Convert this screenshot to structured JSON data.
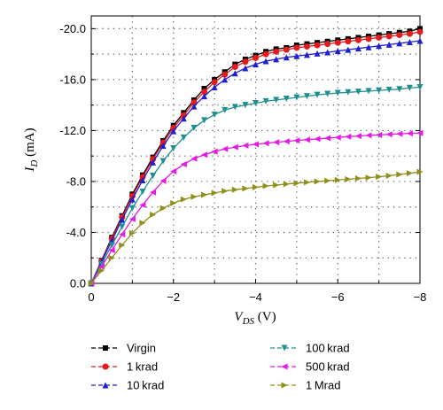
{
  "chart_data": {
    "type": "line",
    "xlabel": {
      "main": "V",
      "sub": "DS",
      "unit": " (V)"
    },
    "ylabel": {
      "main": "I",
      "sub": "D",
      "unit": " (mA)"
    },
    "xlim": [
      0,
      -8
    ],
    "ylim": [
      0,
      -21.0
    ],
    "x_ticks": [
      0,
      -2,
      -4,
      -6,
      -8
    ],
    "x_tick_labels": [
      "0",
      "−2",
      "−4",
      "−6",
      "−8"
    ],
    "y_ticks": [
      0,
      -4,
      -8,
      -12,
      -16,
      -20
    ],
    "y_tick_labels": [
      "0.0",
      "-4.0",
      "-8.0",
      "-12.0",
      "-16.0",
      "-20.0"
    ],
    "grid": "dotted",
    "legend_position": "bottom",
    "x": [
      0,
      -0.25,
      -0.5,
      -0.75,
      -1.0,
      -1.25,
      -1.5,
      -1.75,
      -2.0,
      -2.25,
      -2.5,
      -2.75,
      -3.0,
      -3.25,
      -3.5,
      -3.75,
      -4.0,
      -4.25,
      -4.5,
      -4.75,
      -5.0,
      -5.25,
      -5.5,
      -5.75,
      -6.0,
      -6.25,
      -6.5,
      -6.75,
      -7.0,
      -7.25,
      -7.5,
      -7.75,
      -8.0
    ],
    "series": [
      {
        "name": "Virgin",
        "color": "#000000",
        "marker": "square",
        "values": [
          0,
          -1.8,
          -3.6,
          -5.3,
          -7.0,
          -8.5,
          -9.9,
          -11.2,
          -12.4,
          -13.4,
          -14.4,
          -15.3,
          -16.0,
          -16.6,
          -17.2,
          -17.6,
          -17.9,
          -18.2,
          -18.4,
          -18.5,
          -18.7,
          -18.8,
          -18.9,
          -19.0,
          -19.1,
          -19.2,
          -19.3,
          -19.4,
          -19.5,
          -19.6,
          -19.7,
          -19.8,
          -20.0
        ]
      },
      {
        "name": "1 krad",
        "color": "#e41a1c",
        "marker": "circle",
        "values": [
          0,
          -1.75,
          -3.5,
          -5.2,
          -6.85,
          -8.35,
          -9.75,
          -11.05,
          -12.2,
          -13.2,
          -14.2,
          -15.05,
          -15.8,
          -16.4,
          -17.0,
          -17.4,
          -17.7,
          -18.0,
          -18.2,
          -18.35,
          -18.5,
          -18.6,
          -18.7,
          -18.8,
          -18.9,
          -19.0,
          -19.1,
          -19.2,
          -19.3,
          -19.4,
          -19.5,
          -19.6,
          -19.75
        ]
      },
      {
        "name": "10 krad",
        "color": "#1f1fcf",
        "marker": "triangle-up",
        "values": [
          0,
          -1.7,
          -3.35,
          -5.0,
          -6.6,
          -8.1,
          -9.5,
          -10.8,
          -11.95,
          -12.95,
          -13.9,
          -14.7,
          -15.4,
          -16.0,
          -16.5,
          -16.9,
          -17.2,
          -17.45,
          -17.6,
          -17.75,
          -17.85,
          -17.95,
          -18.05,
          -18.15,
          -18.25,
          -18.35,
          -18.45,
          -18.55,
          -18.65,
          -18.75,
          -18.85,
          -18.95,
          -19.05
        ]
      },
      {
        "name": "100 krad",
        "color": "#1f8f8f",
        "marker": "triangle-down",
        "values": [
          0,
          -1.5,
          -3.0,
          -4.45,
          -5.9,
          -7.2,
          -8.45,
          -9.6,
          -10.6,
          -11.45,
          -12.2,
          -12.8,
          -13.25,
          -13.6,
          -13.85,
          -14.0,
          -14.15,
          -14.3,
          -14.4,
          -14.5,
          -14.6,
          -14.7,
          -14.8,
          -14.88,
          -14.95,
          -15.0,
          -15.05,
          -15.1,
          -15.15,
          -15.2,
          -15.25,
          -15.35,
          -15.4
        ]
      },
      {
        "name": "500 krad",
        "color": "#e619e6",
        "marker": "triangle-left",
        "values": [
          0,
          -1.3,
          -2.6,
          -3.85,
          -5.05,
          -6.15,
          -7.15,
          -8.05,
          -8.8,
          -9.35,
          -9.8,
          -10.1,
          -10.35,
          -10.55,
          -10.7,
          -10.82,
          -10.92,
          -11.0,
          -11.08,
          -11.15,
          -11.22,
          -11.28,
          -11.34,
          -11.4,
          -11.46,
          -11.52,
          -11.57,
          -11.62,
          -11.66,
          -11.7,
          -11.74,
          -11.78,
          -11.8
        ]
      },
      {
        "name": "1 Mrad",
        "color": "#8f8f1a",
        "marker": "triangle-right",
        "values": [
          0,
          -1.0,
          -2.0,
          -3.0,
          -3.95,
          -4.75,
          -5.4,
          -5.9,
          -6.3,
          -6.6,
          -6.8,
          -6.95,
          -7.1,
          -7.25,
          -7.35,
          -7.45,
          -7.55,
          -7.65,
          -7.72,
          -7.8,
          -7.87,
          -7.94,
          -8.0,
          -8.06,
          -8.12,
          -8.18,
          -8.24,
          -8.3,
          -8.37,
          -8.45,
          -8.55,
          -8.65,
          -8.75
        ]
      }
    ]
  }
}
